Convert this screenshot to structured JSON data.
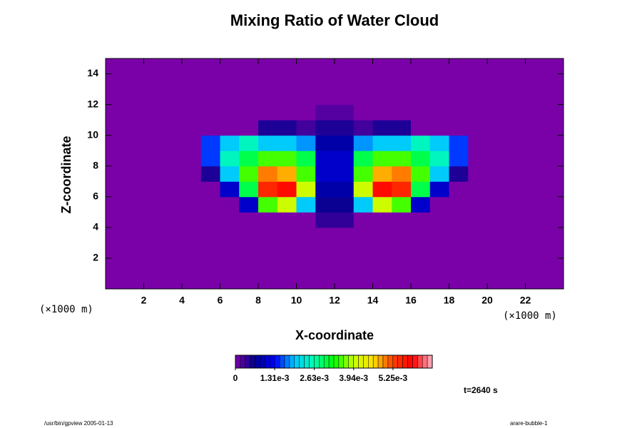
{
  "chart_data": {
    "type": "heatmap",
    "title": "Mixing Ratio of Water Cloud",
    "xlabel": "X-coordinate",
    "ylabel": "Z-coordinate",
    "x_unit": "(×1000 m)",
    "y_unit": "(×1000 m)",
    "time_label": "t=2640 s",
    "footer_left": "/usr/bin/gpview 2005-01-13",
    "footer_right": "arare-bubble-1",
    "xlim": [
      0,
      24
    ],
    "ylim": [
      0,
      15
    ],
    "xticks": [
      2,
      4,
      6,
      8,
      10,
      12,
      14,
      16,
      18,
      20,
      22
    ],
    "yticks": [
      2,
      4,
      6,
      8,
      10,
      12,
      14
    ],
    "x_edges": [
      0,
      1,
      2,
      3,
      4,
      5,
      6,
      7,
      8,
      9,
      10,
      11,
      12,
      13,
      14,
      15,
      16,
      17,
      18,
      19,
      20,
      21,
      22,
      23,
      24
    ],
    "y_edges": [
      0,
      1,
      2,
      3,
      4,
      5,
      6,
      7,
      8,
      9,
      10,
      11,
      12,
      13,
      14,
      15
    ],
    "values": [
      [
        0,
        0,
        0,
        0,
        0,
        0,
        0,
        0,
        0,
        0,
        0,
        0,
        0,
        0,
        0,
        0,
        0,
        0,
        0,
        0,
        0,
        0,
        0,
        0
      ],
      [
        0,
        0,
        0,
        0,
        0,
        0,
        0,
        0,
        0,
        0,
        0,
        0,
        0,
        0,
        0,
        0,
        0,
        0,
        0,
        0,
        0,
        0,
        0,
        0
      ],
      [
        0,
        0,
        0,
        0,
        0,
        0,
        0,
        0,
        0,
        0,
        0,
        0,
        0,
        0,
        0,
        0,
        0,
        0,
        0,
        0,
        0,
        0,
        0,
        0
      ],
      [
        0,
        0,
        0,
        0,
        0,
        0,
        0,
        0,
        0,
        0,
        0,
        0,
        0,
        0,
        0,
        0,
        0,
        0,
        0,
        0,
        0,
        0,
        0,
        0
      ],
      [
        0,
        0,
        0,
        0,
        0,
        0,
        0,
        0,
        0,
        0,
        0,
        0.0004,
        0.0004,
        0,
        0,
        0,
        0,
        0,
        0,
        0,
        0,
        0,
        0,
        0
      ],
      [
        0,
        0,
        0,
        0,
        0,
        0,
        0,
        0.001,
        0.0035,
        0.004,
        0.002,
        0.0006,
        0.0006,
        0.002,
        0.004,
        0.0035,
        0.001,
        0,
        0,
        0,
        0,
        0,
        0,
        0
      ],
      [
        0,
        0,
        0,
        0,
        0,
        0,
        0.001,
        0.003,
        0.0055,
        0.0058,
        0.004,
        0.0008,
        0.0008,
        0.004,
        0.0058,
        0.0055,
        0.003,
        0.001,
        0,
        0,
        0,
        0,
        0,
        0
      ],
      [
        0,
        0,
        0,
        0,
        0,
        0.0005,
        0.002,
        0.0035,
        0.005,
        0.0048,
        0.0035,
        0.001,
        0.001,
        0.0035,
        0.0048,
        0.005,
        0.0035,
        0.002,
        0.0005,
        0,
        0,
        0,
        0,
        0
      ],
      [
        0,
        0,
        0,
        0,
        0,
        0.0015,
        0.0025,
        0.003,
        0.0035,
        0.0035,
        0.003,
        0.001,
        0.001,
        0.003,
        0.0035,
        0.0035,
        0.003,
        0.0025,
        0.0015,
        0,
        0,
        0,
        0,
        0
      ],
      [
        0,
        0,
        0,
        0,
        0,
        0.0015,
        0.002,
        0.0025,
        0.002,
        0.002,
        0.0018,
        0.0008,
        0.0008,
        0.0018,
        0.002,
        0.002,
        0.0025,
        0.002,
        0.0015,
        0,
        0,
        0,
        0,
        0
      ],
      [
        0,
        0,
        0,
        0,
        0,
        0,
        0,
        0,
        0.0005,
        0.0005,
        0.0003,
        0.0005,
        0.0005,
        0.0003,
        0.0005,
        0.0005,
        0,
        0,
        0,
        0,
        0,
        0,
        0,
        0
      ],
      [
        0,
        0,
        0,
        0,
        0,
        0,
        0,
        0,
        0,
        0,
        0,
        0.0002,
        0.0002,
        0,
        0,
        0,
        0,
        0,
        0,
        0,
        0,
        0,
        0,
        0
      ],
      [
        0,
        0,
        0,
        0,
        0,
        0,
        0,
        0,
        0,
        0,
        0,
        0,
        0,
        0,
        0,
        0,
        0,
        0,
        0,
        0,
        0,
        0,
        0,
        0
      ],
      [
        0,
        0,
        0,
        0,
        0,
        0,
        0,
        0,
        0,
        0,
        0,
        0,
        0,
        0,
        0,
        0,
        0,
        0,
        0,
        0,
        0,
        0,
        0,
        0
      ],
      [
        0,
        0,
        0,
        0,
        0,
        0,
        0,
        0,
        0,
        0,
        0,
        0,
        0,
        0,
        0,
        0,
        0,
        0,
        0,
        0,
        0,
        0,
        0,
        0
      ]
    ],
    "clim": [
      0,
      0.00656
    ],
    "colorbar_ticks": [
      0,
      {
        "value": 0.00131,
        "label": "1.31e-3"
      },
      {
        "value": 0.00263,
        "label": "2.63e-3"
      },
      {
        "value": 0.00394,
        "label": "3.94e-3"
      },
      {
        "value": 0.00525,
        "label": "5.25e-3"
      }
    ],
    "colors": [
      "#7a00a8",
      "#000090",
      "#0000ff",
      "#00c8ff",
      "#00ffb0",
      "#00ff00",
      "#c8ff00",
      "#ffe000",
      "#ff4000",
      "#ff0000",
      "#ffb4c8"
    ]
  }
}
